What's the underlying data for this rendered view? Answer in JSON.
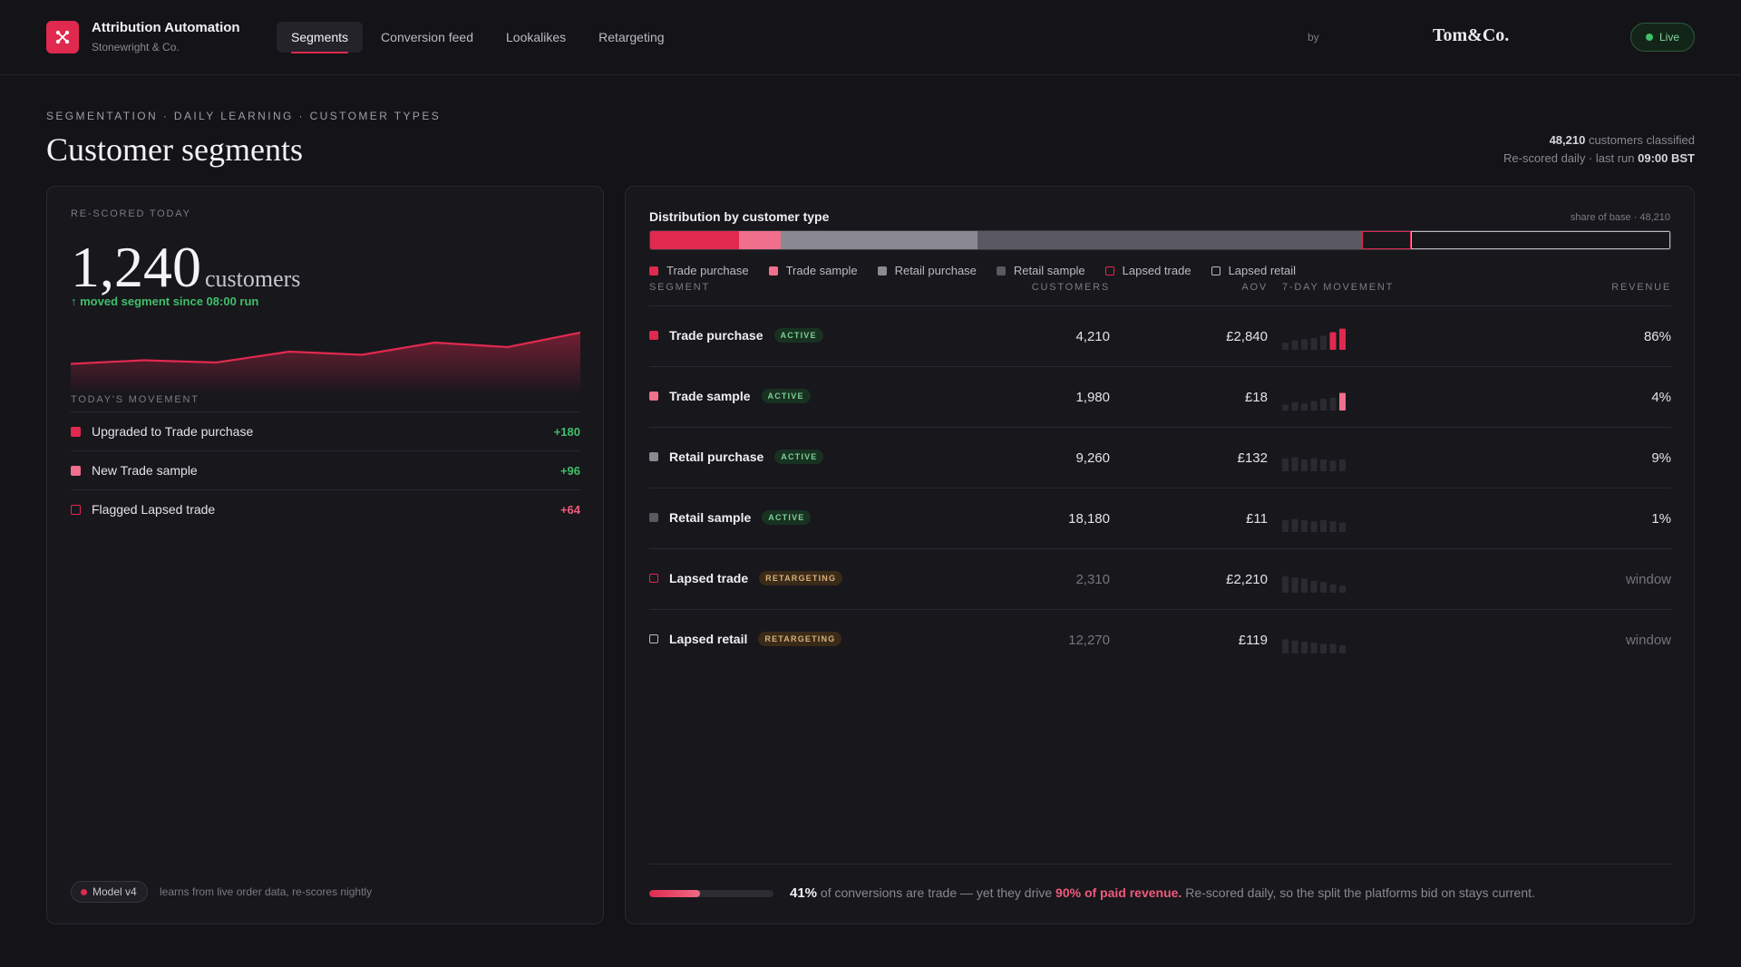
{
  "app": {
    "title": "Attribution Automation",
    "subtitle": "Stonewright & Co.",
    "tabs": [
      {
        "label": "Segments",
        "active": true
      },
      {
        "label": "Conversion feed",
        "active": false
      },
      {
        "label": "Lookalikes",
        "active": false
      },
      {
        "label": "Retargeting",
        "active": false
      }
    ],
    "by_label": "by",
    "partner": "Tom&Co.",
    "status": "Live"
  },
  "header": {
    "eyebrow": "SEGMENTATION · DAILY LEARNING · CUSTOMER TYPES",
    "title": "Customer segments",
    "classified_count": "48,210",
    "classified_label": "customers classified",
    "rescored_label": "Re-scored daily · last run",
    "last_run": "09:00 BST"
  },
  "rescored": {
    "label": "RE-SCORED TODAY",
    "count": "1,240",
    "unit": "customers",
    "moved_note": "↑ moved segment since 08:00 run",
    "trend": [
      0.25,
      0.33,
      0.28,
      0.52,
      0.45,
      0.72,
      0.62,
      0.94
    ]
  },
  "movement": {
    "title": "TODAY'S MOVEMENT",
    "items": [
      {
        "label": "Upgraded to Trade purchase",
        "value": "+180",
        "color": "#e0294f",
        "outline": false,
        "value_color": "#3fbf6a"
      },
      {
        "label": "New Trade sample",
        "value": "+96",
        "color": "#ef6f8c",
        "outline": false,
        "value_color": "#3fbf6a"
      },
      {
        "label": "Flagged Lapsed trade",
        "value": "+64",
        "color": "#e0294f",
        "outline": true,
        "value_color": "#ef5a7c"
      }
    ]
  },
  "model": {
    "badge": "Model v4",
    "note": "learns from live order data, re-scores nightly"
  },
  "distribution": {
    "title": "Distribution by customer type",
    "share_label": "share of base · 48,210",
    "legend": [
      {
        "label": "Trade purchase",
        "color": "#e0294f",
        "outline": false
      },
      {
        "label": "Trade sample",
        "color": "#ef6f8c",
        "outline": false
      },
      {
        "label": "Retail purchase",
        "color": "#8a8890",
        "outline": false
      },
      {
        "label": "Retail sample",
        "color": "#5a5860",
        "outline": false
      },
      {
        "label": "Lapsed trade",
        "color": "#e0294f",
        "outline": true
      },
      {
        "label": "Lapsed retail",
        "color": "#bdbac2",
        "outline": true
      }
    ]
  },
  "table": {
    "headers": {
      "segment": "SEGMENT",
      "customers": "CUSTOMERS",
      "aov": "AOV",
      "movement": "7-DAY MOVEMENT",
      "revenue": "REVENUE"
    },
    "rows": [
      {
        "name": "Trade purchase",
        "badge": "ACTIVE",
        "badge_type": "active",
        "customers": "4,210",
        "aov": "£2,840",
        "revenue": "86%",
        "color": "#e0294f",
        "outline": false,
        "dim": false,
        "bars": [
          0.3,
          0.4,
          0.45,
          0.5,
          0.6,
          0.75,
          0.9
        ],
        "bar_hl": [
          5,
          6
        ]
      },
      {
        "name": "Trade sample",
        "badge": "ACTIVE",
        "badge_type": "active",
        "customers": "1,980",
        "aov": "£18",
        "revenue": "4%",
        "color": "#ef6f8c",
        "outline": false,
        "dim": false,
        "bars": [
          0.25,
          0.35,
          0.3,
          0.4,
          0.5,
          0.55,
          0.75
        ],
        "bar_hl": [
          6
        ]
      },
      {
        "name": "Retail purchase",
        "badge": "ACTIVE",
        "badge_type": "active",
        "customers": "9,260",
        "aov": "£132",
        "revenue": "9%",
        "color": "#8a8890",
        "outline": false,
        "dim": false,
        "bars": [
          0.55,
          0.6,
          0.5,
          0.55,
          0.5,
          0.45,
          0.5
        ],
        "bar_hl": []
      },
      {
        "name": "Retail sample",
        "badge": "ACTIVE",
        "badge_type": "active",
        "customers": "18,180",
        "aov": "£11",
        "revenue": "1%",
        "color": "#5a5860",
        "outline": false,
        "dim": false,
        "bars": [
          0.5,
          0.55,
          0.5,
          0.45,
          0.5,
          0.45,
          0.4
        ],
        "bar_hl": []
      },
      {
        "name": "Lapsed trade",
        "badge": "RETARGETING",
        "badge_type": "retarget",
        "customers": "2,310",
        "aov": "£2,210",
        "revenue": "window",
        "color": "#e0294f",
        "outline": true,
        "dim": true,
        "bars": [
          0.7,
          0.65,
          0.6,
          0.5,
          0.45,
          0.35,
          0.3
        ],
        "bar_hl": []
      },
      {
        "name": "Lapsed retail",
        "badge": "RETARGETING",
        "badge_type": "retarget",
        "customers": "12,270",
        "aov": "£119",
        "revenue": "window",
        "color": "#bdbac2",
        "outline": true,
        "dim": true,
        "bars": [
          0.6,
          0.55,
          0.5,
          0.45,
          0.4,
          0.4,
          0.35
        ],
        "bar_hl": []
      }
    ]
  },
  "footer": {
    "progress": 0.41,
    "pct": "41%",
    "text1": " of conversions are trade — yet they drive ",
    "highlight": "90% of paid revenue.",
    "text2": " Re-scored daily, so the split the platforms bid on stays current."
  }
}
